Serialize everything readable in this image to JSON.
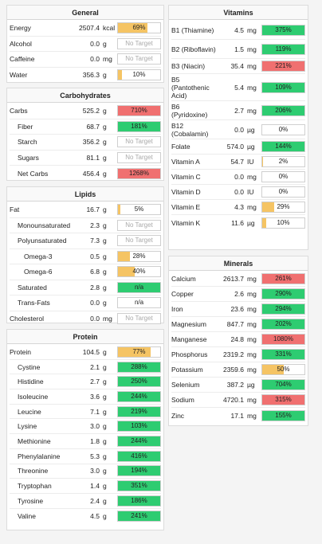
{
  "colors": {
    "green": "#2ecc71",
    "red": "#f07070",
    "yellow": "#f5c464"
  },
  "panels": [
    {
      "id": "general",
      "title": "General",
      "rows": [
        {
          "name": "Energy",
          "amount": "2507.4",
          "unit": "kcal",
          "percent": "69%",
          "fill": 0.69,
          "status": "yellow"
        },
        {
          "name": "Alcohol",
          "amount": "0.0",
          "unit": "g",
          "percent": "No Target",
          "fill": 0,
          "status": "none"
        },
        {
          "name": "Caffeine",
          "amount": "0.0",
          "unit": "mg",
          "percent": "No Target",
          "fill": 0,
          "status": "none"
        },
        {
          "name": "Water",
          "amount": "356.3",
          "unit": "g",
          "percent": "10%",
          "fill": 0.1,
          "status": "yellow"
        }
      ]
    },
    {
      "id": "carbohydrates",
      "title": "Carbohydrates",
      "rows": [
        {
          "name": "Carbs",
          "amount": "525.2",
          "unit": "g",
          "percent": "710%",
          "fill": 1,
          "status": "red"
        },
        {
          "name": "Fiber",
          "amount": "68.7",
          "unit": "g",
          "percent": "181%",
          "fill": 1,
          "status": "green",
          "indent": 1
        },
        {
          "name": "Starch",
          "amount": "356.2",
          "unit": "g",
          "percent": "No Target",
          "fill": 0,
          "status": "none",
          "indent": 1
        },
        {
          "name": "Sugars",
          "amount": "81.1",
          "unit": "g",
          "percent": "No Target",
          "fill": 0,
          "status": "none",
          "indent": 1
        },
        {
          "name": "Net Carbs",
          "amount": "456.4",
          "unit": "g",
          "percent": "1268%",
          "fill": 1,
          "status": "red",
          "indent": 1
        }
      ]
    },
    {
      "id": "lipids",
      "title": "Lipids",
      "rows": [
        {
          "name": "Fat",
          "amount": "16.7",
          "unit": "g",
          "percent": "5%",
          "fill": 0.05,
          "status": "yellow"
        },
        {
          "name": "Monounsaturated",
          "amount": "2.3",
          "unit": "g",
          "percent": "No Target",
          "fill": 0,
          "status": "none",
          "indent": 1
        },
        {
          "name": "Polyunsaturated",
          "amount": "7.3",
          "unit": "g",
          "percent": "No Target",
          "fill": 0,
          "status": "none",
          "indent": 1
        },
        {
          "name": "Omega-3",
          "amount": "0.5",
          "unit": "g",
          "percent": "28%",
          "fill": 0.28,
          "status": "yellow",
          "indent": 2
        },
        {
          "name": "Omega-6",
          "amount": "6.8",
          "unit": "g",
          "percent": "40%",
          "fill": 0.4,
          "status": "yellow",
          "indent": 2
        },
        {
          "name": "Saturated",
          "amount": "2.8",
          "unit": "g",
          "percent": "n/a",
          "fill": 1,
          "status": "green",
          "indent": 1
        },
        {
          "name": "Trans-Fats",
          "amount": "0.0",
          "unit": "g",
          "percent": "n/a",
          "fill": 0,
          "status": "none-dark",
          "indent": 1
        },
        {
          "name": "Cholesterol",
          "amount": "0.0",
          "unit": "mg",
          "percent": "No Target",
          "fill": 0,
          "status": "none"
        }
      ]
    },
    {
      "id": "protein",
      "title": "Protein",
      "rows": [
        {
          "name": "Protein",
          "amount": "104.5",
          "unit": "g",
          "percent": "77%",
          "fill": 0.77,
          "status": "yellow"
        },
        {
          "name": "Cystine",
          "amount": "2.1",
          "unit": "g",
          "percent": "288%",
          "fill": 1,
          "status": "green",
          "indent": 1
        },
        {
          "name": "Histidine",
          "amount": "2.7",
          "unit": "g",
          "percent": "250%",
          "fill": 1,
          "status": "green",
          "indent": 1
        },
        {
          "name": "Isoleucine",
          "amount": "3.6",
          "unit": "g",
          "percent": "244%",
          "fill": 1,
          "status": "green",
          "indent": 1
        },
        {
          "name": "Leucine",
          "amount": "7.1",
          "unit": "g",
          "percent": "219%",
          "fill": 1,
          "status": "green",
          "indent": 1
        },
        {
          "name": "Lysine",
          "amount": "3.0",
          "unit": "g",
          "percent": "103%",
          "fill": 1,
          "status": "green",
          "indent": 1
        },
        {
          "name": "Methionine",
          "amount": "1.8",
          "unit": "g",
          "percent": "244%",
          "fill": 1,
          "status": "green",
          "indent": 1
        },
        {
          "name": "Phenylalanine",
          "amount": "5.3",
          "unit": "g",
          "percent": "416%",
          "fill": 1,
          "status": "green",
          "indent": 1
        },
        {
          "name": "Threonine",
          "amount": "3.0",
          "unit": "g",
          "percent": "194%",
          "fill": 1,
          "status": "green",
          "indent": 1
        },
        {
          "name": "Tryptophan",
          "amount": "1.4",
          "unit": "g",
          "percent": "351%",
          "fill": 1,
          "status": "green",
          "indent": 1
        },
        {
          "name": "Tyrosine",
          "amount": "2.4",
          "unit": "g",
          "percent": "186%",
          "fill": 1,
          "status": "green",
          "indent": 1
        },
        {
          "name": "Valine",
          "amount": "4.5",
          "unit": "g",
          "percent": "241%",
          "fill": 1,
          "status": "green",
          "indent": 1
        }
      ]
    },
    {
      "id": "vitamins",
      "title": "Vitamins",
      "rows": [
        {
          "name": "B1 (Thiamine)",
          "amount": "4.5",
          "unit": "mg",
          "percent": "375%",
          "fill": 1,
          "status": "green",
          "lines": 2
        },
        {
          "name": "B2 (Riboflavin)",
          "amount": "1.5",
          "unit": "mg",
          "percent": "119%",
          "fill": 1,
          "status": "green",
          "lines": 2
        },
        {
          "name": "B3 (Niacin)",
          "amount": "35.4",
          "unit": "mg",
          "percent": "221%",
          "fill": 1,
          "status": "red"
        },
        {
          "name": "B5 (Pantothenic Acid)",
          "amount": "5.4",
          "unit": "mg",
          "percent": "109%",
          "fill": 1,
          "status": "green",
          "lines": 3
        },
        {
          "name": "B6 (Pyridoxine)",
          "amount": "2.7",
          "unit": "mg",
          "percent": "206%",
          "fill": 1,
          "status": "green",
          "lines": 2
        },
        {
          "name": "B12 (Cobalamin)",
          "amount": "0.0",
          "unit": "µg",
          "percent": "0%",
          "fill": 0,
          "status": "none-dark",
          "lines": 2
        },
        {
          "name": "Folate",
          "amount": "574.0",
          "unit": "µg",
          "percent": "144%",
          "fill": 1,
          "status": "green"
        },
        {
          "name": "Vitamin A",
          "amount": "54.7",
          "unit": "IU",
          "percent": "2%",
          "fill": 0.02,
          "status": "yellow"
        },
        {
          "name": "Vitamin C",
          "amount": "0.0",
          "unit": "mg",
          "percent": "0%",
          "fill": 0,
          "status": "none-dark"
        },
        {
          "name": "Vitamin D",
          "amount": "0.0",
          "unit": "IU",
          "percent": "0%",
          "fill": 0,
          "status": "none-dark"
        },
        {
          "name": "Vitamin E",
          "amount": "4.3",
          "unit": "mg",
          "percent": "29%",
          "fill": 0.29,
          "status": "yellow"
        },
        {
          "name": "Vitamin K",
          "amount": "11.6",
          "unit": "µg",
          "percent": "10%",
          "fill": 0.1,
          "status": "yellow"
        }
      ]
    },
    {
      "id": "minerals",
      "title": "Minerals",
      "rows": [
        {
          "name": "Calcium",
          "amount": "2613.7",
          "unit": "mg",
          "percent": "261%",
          "fill": 1,
          "status": "red"
        },
        {
          "name": "Copper",
          "amount": "2.6",
          "unit": "mg",
          "percent": "290%",
          "fill": 1,
          "status": "green"
        },
        {
          "name": "Iron",
          "amount": "23.6",
          "unit": "mg",
          "percent": "294%",
          "fill": 1,
          "status": "green"
        },
        {
          "name": "Magnesium",
          "amount": "847.7",
          "unit": "mg",
          "percent": "202%",
          "fill": 1,
          "status": "green"
        },
        {
          "name": "Manganese",
          "amount": "24.8",
          "unit": "mg",
          "percent": "1080%",
          "fill": 1,
          "status": "red"
        },
        {
          "name": "Phosphorus",
          "amount": "2319.2",
          "unit": "mg",
          "percent": "331%",
          "fill": 1,
          "status": "green"
        },
        {
          "name": "Potassium",
          "amount": "2359.6",
          "unit": "mg",
          "percent": "50%",
          "fill": 0.5,
          "status": "yellow"
        },
        {
          "name": "Selenium",
          "amount": "387.2",
          "unit": "µg",
          "percent": "704%",
          "fill": 1,
          "status": "green"
        },
        {
          "name": "Sodium",
          "amount": "4720.1",
          "unit": "mg",
          "percent": "315%",
          "fill": 1,
          "status": "red"
        },
        {
          "name": "Zinc",
          "amount": "17.1",
          "unit": "mg",
          "percent": "155%",
          "fill": 1,
          "status": "green"
        }
      ]
    }
  ]
}
